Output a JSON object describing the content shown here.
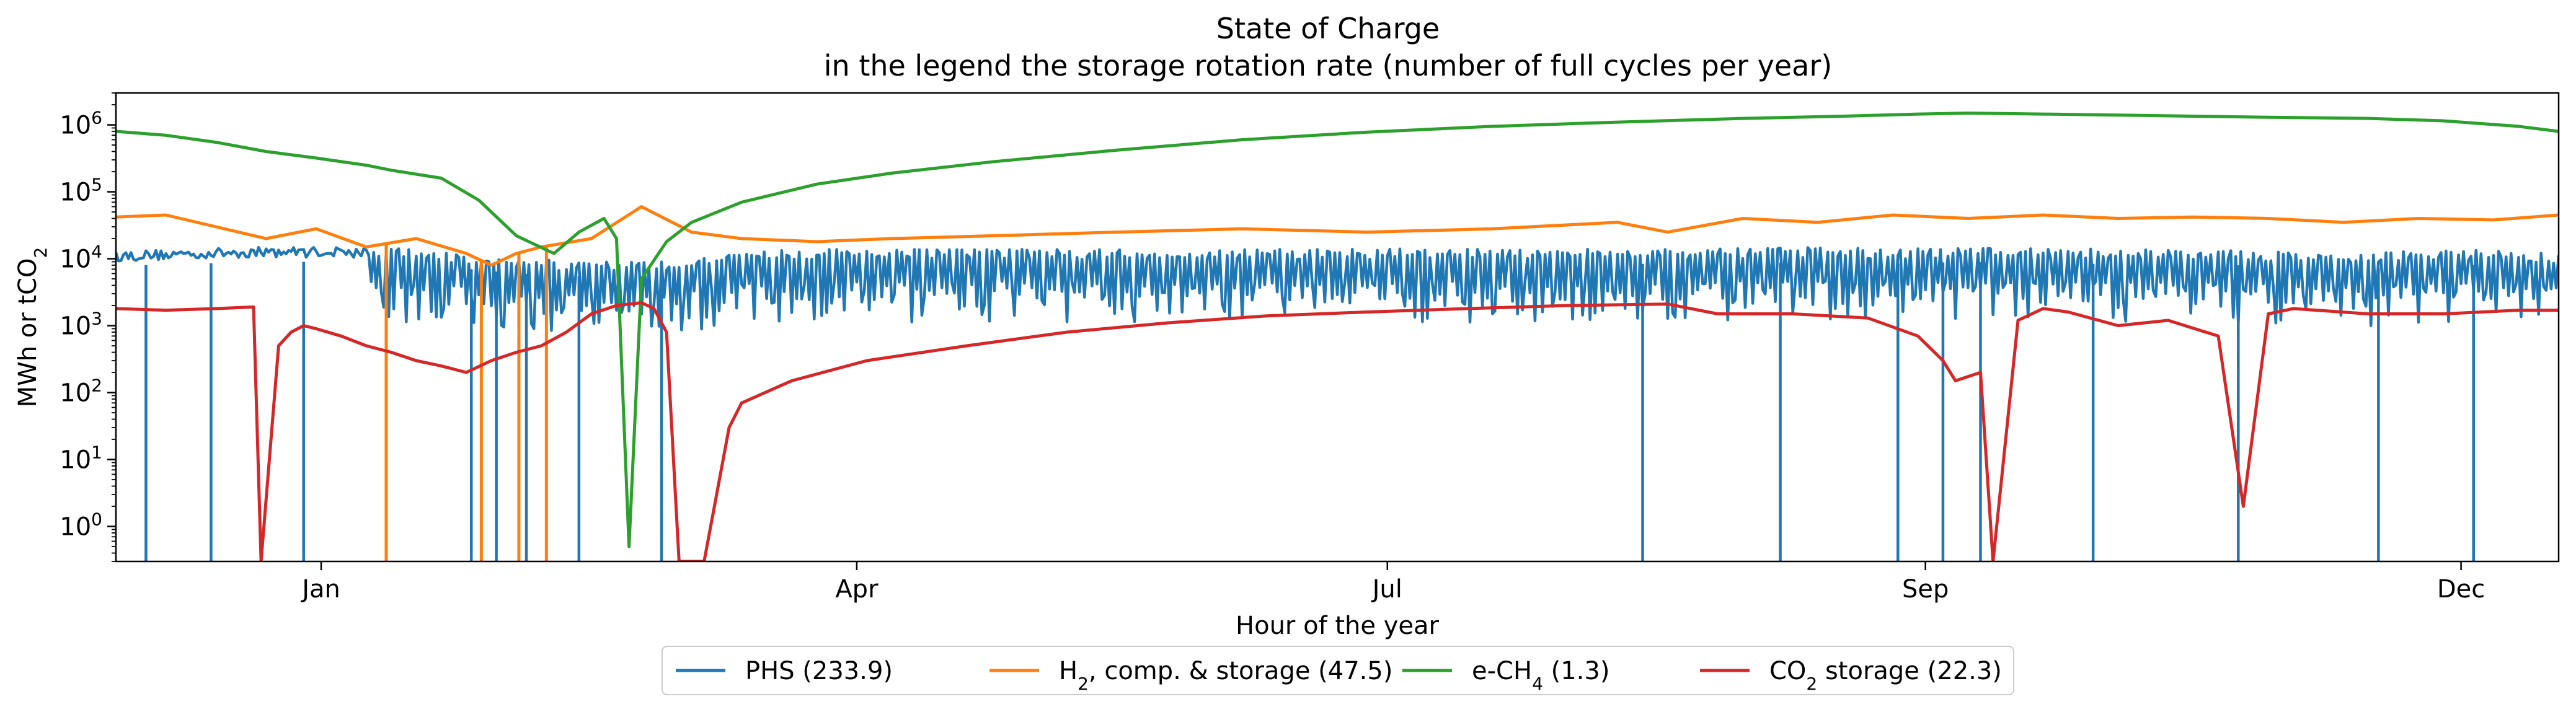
{
  "chart_data": {
    "type": "line",
    "title": "State of Charge",
    "subtitle": "in the legend the storage rotation rate (number of full cycles per year)",
    "xlabel": "Hour of the year",
    "ylabel": "MWh or tCO2",
    "yscale": "log",
    "xlim": [
      -1000,
      8760
    ],
    "ylim": [
      0.3,
      3000000
    ],
    "grid": false,
    "legend_position": "bottom-center",
    "x_ticks": [
      {
        "label": "Jan",
        "value": -180
      },
      {
        "label": "Apr",
        "value": 1960
      },
      {
        "label": "Jul",
        "value": 4080
      },
      {
        "label": "Sep",
        "value": 6230
      },
      {
        "label": "Dec",
        "value": 8370
      }
    ],
    "y_ticks": [
      {
        "base": "10",
        "exp": "0",
        "value": 1
      },
      {
        "base": "10",
        "exp": "1",
        "value": 10
      },
      {
        "base": "10",
        "exp": "2",
        "value": 100
      },
      {
        "base": "10",
        "exp": "3",
        "value": 1000
      },
      {
        "base": "10",
        "exp": "4",
        "value": 10000
      },
      {
        "base": "10",
        "exp": "5",
        "value": 100000
      },
      {
        "base": "10",
        "exp": "6",
        "value": 1000000
      }
    ],
    "series": [
      {
        "name": "PHS (233.9)",
        "color": "#1f77b4",
        "style": "daily-cycling",
        "envelope_x": [
          -1000,
          -700,
          -400,
          -100,
          200,
          600,
          900,
          1200,
          1500,
          1900,
          2400,
          3000,
          3600,
          4200,
          4800,
          5400,
          5800,
          6100,
          6400,
          6800,
          7200,
          7600,
          8000,
          8300,
          8760
        ],
        "envelope_y": [
          13000,
          14000,
          15000,
          15000,
          14000,
          10000,
          9000,
          9000,
          13000,
          14000,
          14000,
          14000,
          14000,
          14000,
          14000,
          14000,
          15000,
          14000,
          15000,
          14000,
          14000,
          13000,
          12000,
          14000,
          12000
        ],
        "deep_discharge_x": [
          -880,
          -620,
          -250,
          420,
          520,
          640,
          850,
          1180,
          5100,
          5650,
          6120,
          6300,
          6450,
          6900,
          7480,
          8040,
          8420
        ]
      },
      {
        "name": "H2, comp. & storage (47.5)",
        "label_html": "H<sub>2</sub>, comp. &amp; storage (47.5)",
        "color": "#ff7f0e",
        "x": [
          -1000,
          -800,
          -600,
          -400,
          -200,
          0,
          200,
          400,
          500,
          600,
          700,
          900,
          1100,
          1300,
          1500,
          1800,
          2100,
          2500,
          3000,
          3500,
          4000,
          4500,
          5000,
          5200,
          5500,
          5800,
          6100,
          6400,
          6700,
          7000,
          7300,
          7600,
          7900,
          8200,
          8500,
          8760
        ],
        "y": [
          42000,
          45000,
          30000,
          20000,
          28000,
          15000,
          20000,
          12000,
          8000,
          12000,
          15000,
          20000,
          60000,
          25000,
          20000,
          18000,
          20000,
          22000,
          25000,
          28000,
          25000,
          28000,
          35000,
          25000,
          40000,
          35000,
          45000,
          40000,
          45000,
          40000,
          42000,
          40000,
          35000,
          40000,
          38000,
          45000
        ],
        "dropouts_x": [
          80,
          460,
          610,
          720
        ]
      },
      {
        "name": "e-CH4 (1.3)",
        "label_html": "e-CH<sub>4</sub> (1.3)",
        "color": "#2ca02c",
        "x": [
          -1000,
          -800,
          -600,
          -400,
          -200,
          0,
          100,
          300,
          450,
          600,
          750,
          850,
          950,
          1000,
          1050,
          1100,
          1200,
          1300,
          1500,
          1800,
          2100,
          2500,
          3000,
          3500,
          4000,
          4500,
          5000,
          5500,
          5900,
          6200,
          6400,
          6700,
          7000,
          7300,
          7600,
          8000,
          8300,
          8600,
          8760
        ],
        "y": [
          800000,
          700000,
          550000,
          400000,
          320000,
          250000,
          210000,
          160000,
          75000,
          22000,
          12000,
          25000,
          40000,
          20000,
          0.5,
          5000,
          18000,
          35000,
          70000,
          130000,
          190000,
          280000,
          420000,
          600000,
          780000,
          950000,
          1100000,
          1250000,
          1350000,
          1450000,
          1500000,
          1450000,
          1400000,
          1350000,
          1300000,
          1250000,
          1150000,
          950000,
          800000
        ]
      },
      {
        "name": "CO2 storage (22.3)",
        "label_html": "CO<sub>2</sub> storage (22.3)",
        "color": "#d62728",
        "x": [
          -1000,
          -800,
          -600,
          -450,
          -420,
          -350,
          -300,
          -250,
          -200,
          -100,
          0,
          100,
          200,
          300,
          400,
          500,
          600,
          700,
          800,
          900,
          1000,
          1100,
          1150,
          1200,
          1250,
          1350,
          1400,
          1450,
          1500,
          1700,
          2000,
          2400,
          2800,
          3200,
          3600,
          4000,
          4400,
          4800,
          5200,
          5400,
          5700,
          6000,
          6200,
          6300,
          6350,
          6450,
          6500,
          6600,
          6700,
          6800,
          7000,
          7200,
          7400,
          7500,
          7600,
          7700,
          8000,
          8300,
          8600,
          8760
        ],
        "y": [
          1800,
          1700,
          1800,
          1900,
          0.3,
          500,
          800,
          1000,
          900,
          700,
          500,
          400,
          300,
          250,
          200,
          300,
          400,
          500,
          800,
          1500,
          2000,
          2200,
          1800,
          800,
          0.3,
          0.3,
          3,
          30,
          70,
          150,
          300,
          500,
          800,
          1100,
          1400,
          1600,
          1800,
          2000,
          2100,
          1500,
          1500,
          1300,
          700,
          300,
          150,
          200,
          0.3,
          1200,
          1800,
          1600,
          1000,
          1200,
          700,
          2,
          1500,
          1800,
          1500,
          1500,
          1700,
          1700
        ]
      }
    ]
  }
}
